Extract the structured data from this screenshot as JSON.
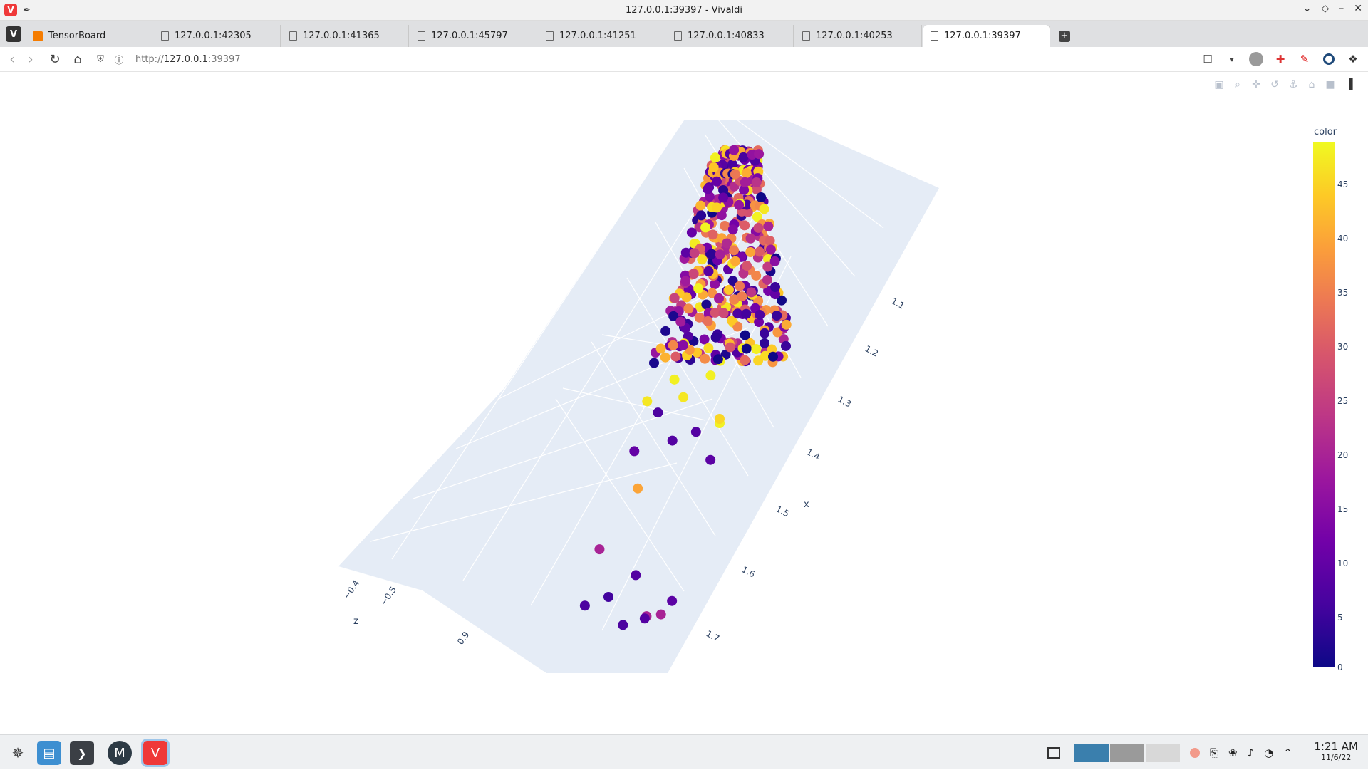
{
  "window": {
    "title": "127.0.0.1:39397 - Vivaldi",
    "logo_icon": "vivaldi-logo-icon",
    "controls": [
      "chevron-down-icon",
      "restore-icon",
      "minimize-icon",
      "close-icon"
    ]
  },
  "tabs": [
    {
      "label": "TensorBoard",
      "active": false,
      "icon": "tensorboard-icon"
    },
    {
      "label": "127.0.0.1:42305",
      "active": false,
      "icon": "page-icon"
    },
    {
      "label": "127.0.0.1:41365",
      "active": false,
      "icon": "page-icon"
    },
    {
      "label": "127.0.0.1:45797",
      "active": false,
      "icon": "page-icon"
    },
    {
      "label": "127.0.0.1:41251",
      "active": false,
      "icon": "page-icon"
    },
    {
      "label": "127.0.0.1:40833",
      "active": false,
      "icon": "page-icon"
    },
    {
      "label": "127.0.0.1:40253",
      "active": false,
      "icon": "page-icon"
    },
    {
      "label": "127.0.0.1:39397",
      "active": true,
      "icon": "page-icon"
    }
  ],
  "address": {
    "scheme": "http://",
    "host": "127.0.0.1",
    "port": ":39397"
  },
  "plot": {
    "modebar": [
      "camera-icon",
      "zoom-icon",
      "pan-icon",
      "orbit-icon",
      "turntable-icon",
      "reset-camera-icon",
      "last-save-icon",
      "plotly-logo-icon"
    ],
    "colorbar": {
      "title": "color",
      "ticks": [
        "45",
        "40",
        "35",
        "30",
        "25",
        "20",
        "15",
        "10",
        "5",
        "0"
      ],
      "colors": [
        "#0d0887",
        "#46039f",
        "#7201a8",
        "#9c179e",
        "#bd3786",
        "#d8576b",
        "#ed7953",
        "#fb9f3a",
        "#fdca26",
        "#f0f921"
      ]
    },
    "axis_x": {
      "title": "x",
      "ticks": [
        "1.1",
        "1.2",
        "1.3",
        "1.4",
        "1.5",
        "1.6",
        "1.7"
      ]
    },
    "axis_z": {
      "title": "z",
      "ticks": [
        "−0.4",
        "−0.5"
      ]
    },
    "axis_y": {
      "ticks": [
        "0.9"
      ]
    }
  },
  "chart_data": {
    "type": "scatter",
    "title": "",
    "xlabel": "x",
    "zlabel": "z",
    "color_label": "color",
    "color_range": [
      0,
      48
    ],
    "xlim": [
      1.05,
      1.75
    ],
    "note_values": "3D scatter; points estimated as (x, color)",
    "points": [
      {
        "x": 1.72,
        "c": 18
      },
      {
        "x": 1.71,
        "c": 6
      },
      {
        "x": 1.7,
        "c": 6
      },
      {
        "x": 1.69,
        "c": 18
      },
      {
        "x": 1.68,
        "c": 5
      },
      {
        "x": 1.66,
        "c": 8
      },
      {
        "x": 1.64,
        "c": 7
      },
      {
        "x": 1.62,
        "c": 18
      },
      {
        "x": 1.7,
        "c": 7
      },
      {
        "x": 1.52,
        "c": 38
      },
      {
        "x": 1.45,
        "c": 8
      },
      {
        "x": 1.44,
        "c": 7
      },
      {
        "x": 1.43,
        "c": 9
      },
      {
        "x": 1.42,
        "c": 7
      },
      {
        "x": 1.41,
        "c": 6
      },
      {
        "x": 1.4,
        "c": 47
      },
      {
        "x": 1.38,
        "c": 46
      },
      {
        "x": 1.36,
        "c": 46
      },
      {
        "x": 1.34,
        "c": 47
      },
      {
        "x": 1.32,
        "c": 47
      },
      {
        "x": 1.4,
        "c": 44
      }
    ]
  },
  "taskbar": {
    "apps": [
      "launcher-icon",
      "file-manager-icon",
      "terminal-icon",
      "mail-icon",
      "vivaldi-icon"
    ],
    "tray": [
      "show-desktop-icon",
      "clipboard-icon",
      "notifications-icon",
      "volume-icon",
      "wifi-icon",
      "chevron-up-icon"
    ],
    "time": "1:21 AM",
    "date": "11/6/22"
  }
}
